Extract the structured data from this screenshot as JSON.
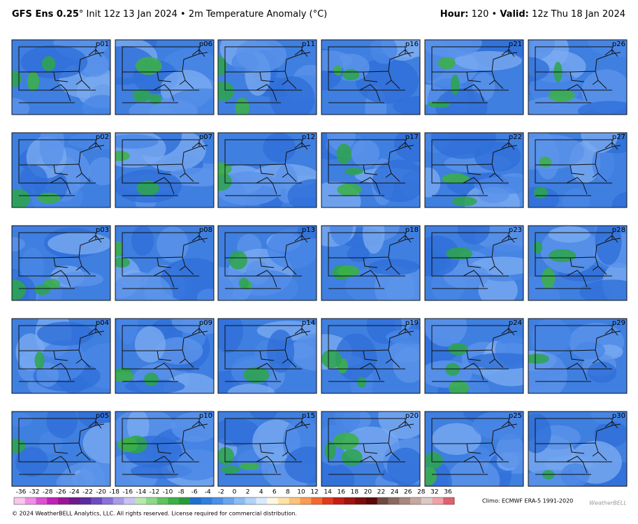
{
  "header": {
    "model": "GFS Ens 0.25",
    "info": "° Init 12z 13 Jan 2024 • 2m Temperature Anomaly (°C)",
    "hour_label": "Hour:",
    "hour_value": " 120 • ",
    "valid_label": "Valid:",
    "valid_value": " 12z Thu 18 Jan 2024"
  },
  "panels": [
    "p01",
    "p02",
    "p03",
    "p04",
    "p05",
    "p06",
    "p07",
    "p08",
    "p09",
    "p10",
    "p11",
    "p12",
    "p13",
    "p14",
    "p15",
    "p16",
    "p17",
    "p18",
    "p19",
    "p20",
    "p21",
    "p22",
    "p23",
    "p24",
    "p25",
    "p26",
    "p27",
    "p28",
    "p29",
    "p30"
  ],
  "colorbar": {
    "labels": [
      "-36",
      "-32",
      "-28",
      "-26",
      "-24",
      "-22",
      "-20",
      "-18",
      "-16",
      "-14",
      "-12",
      "-10",
      "-8",
      "-6",
      "-4",
      "-2",
      "0",
      "2",
      "4",
      "6",
      "8",
      "10",
      "12",
      "14",
      "16",
      "18",
      "20",
      "22",
      "24",
      "26",
      "28",
      "32",
      "36"
    ]
  },
  "footer": {
    "climo": "Climo: ECMWF ERA-5 1991-2020",
    "copyright": "© 2024 WeatherBELL Analytics, LLC. All rights reserved. License required for commercial distribution.",
    "logo": "WeatherBELL"
  }
}
